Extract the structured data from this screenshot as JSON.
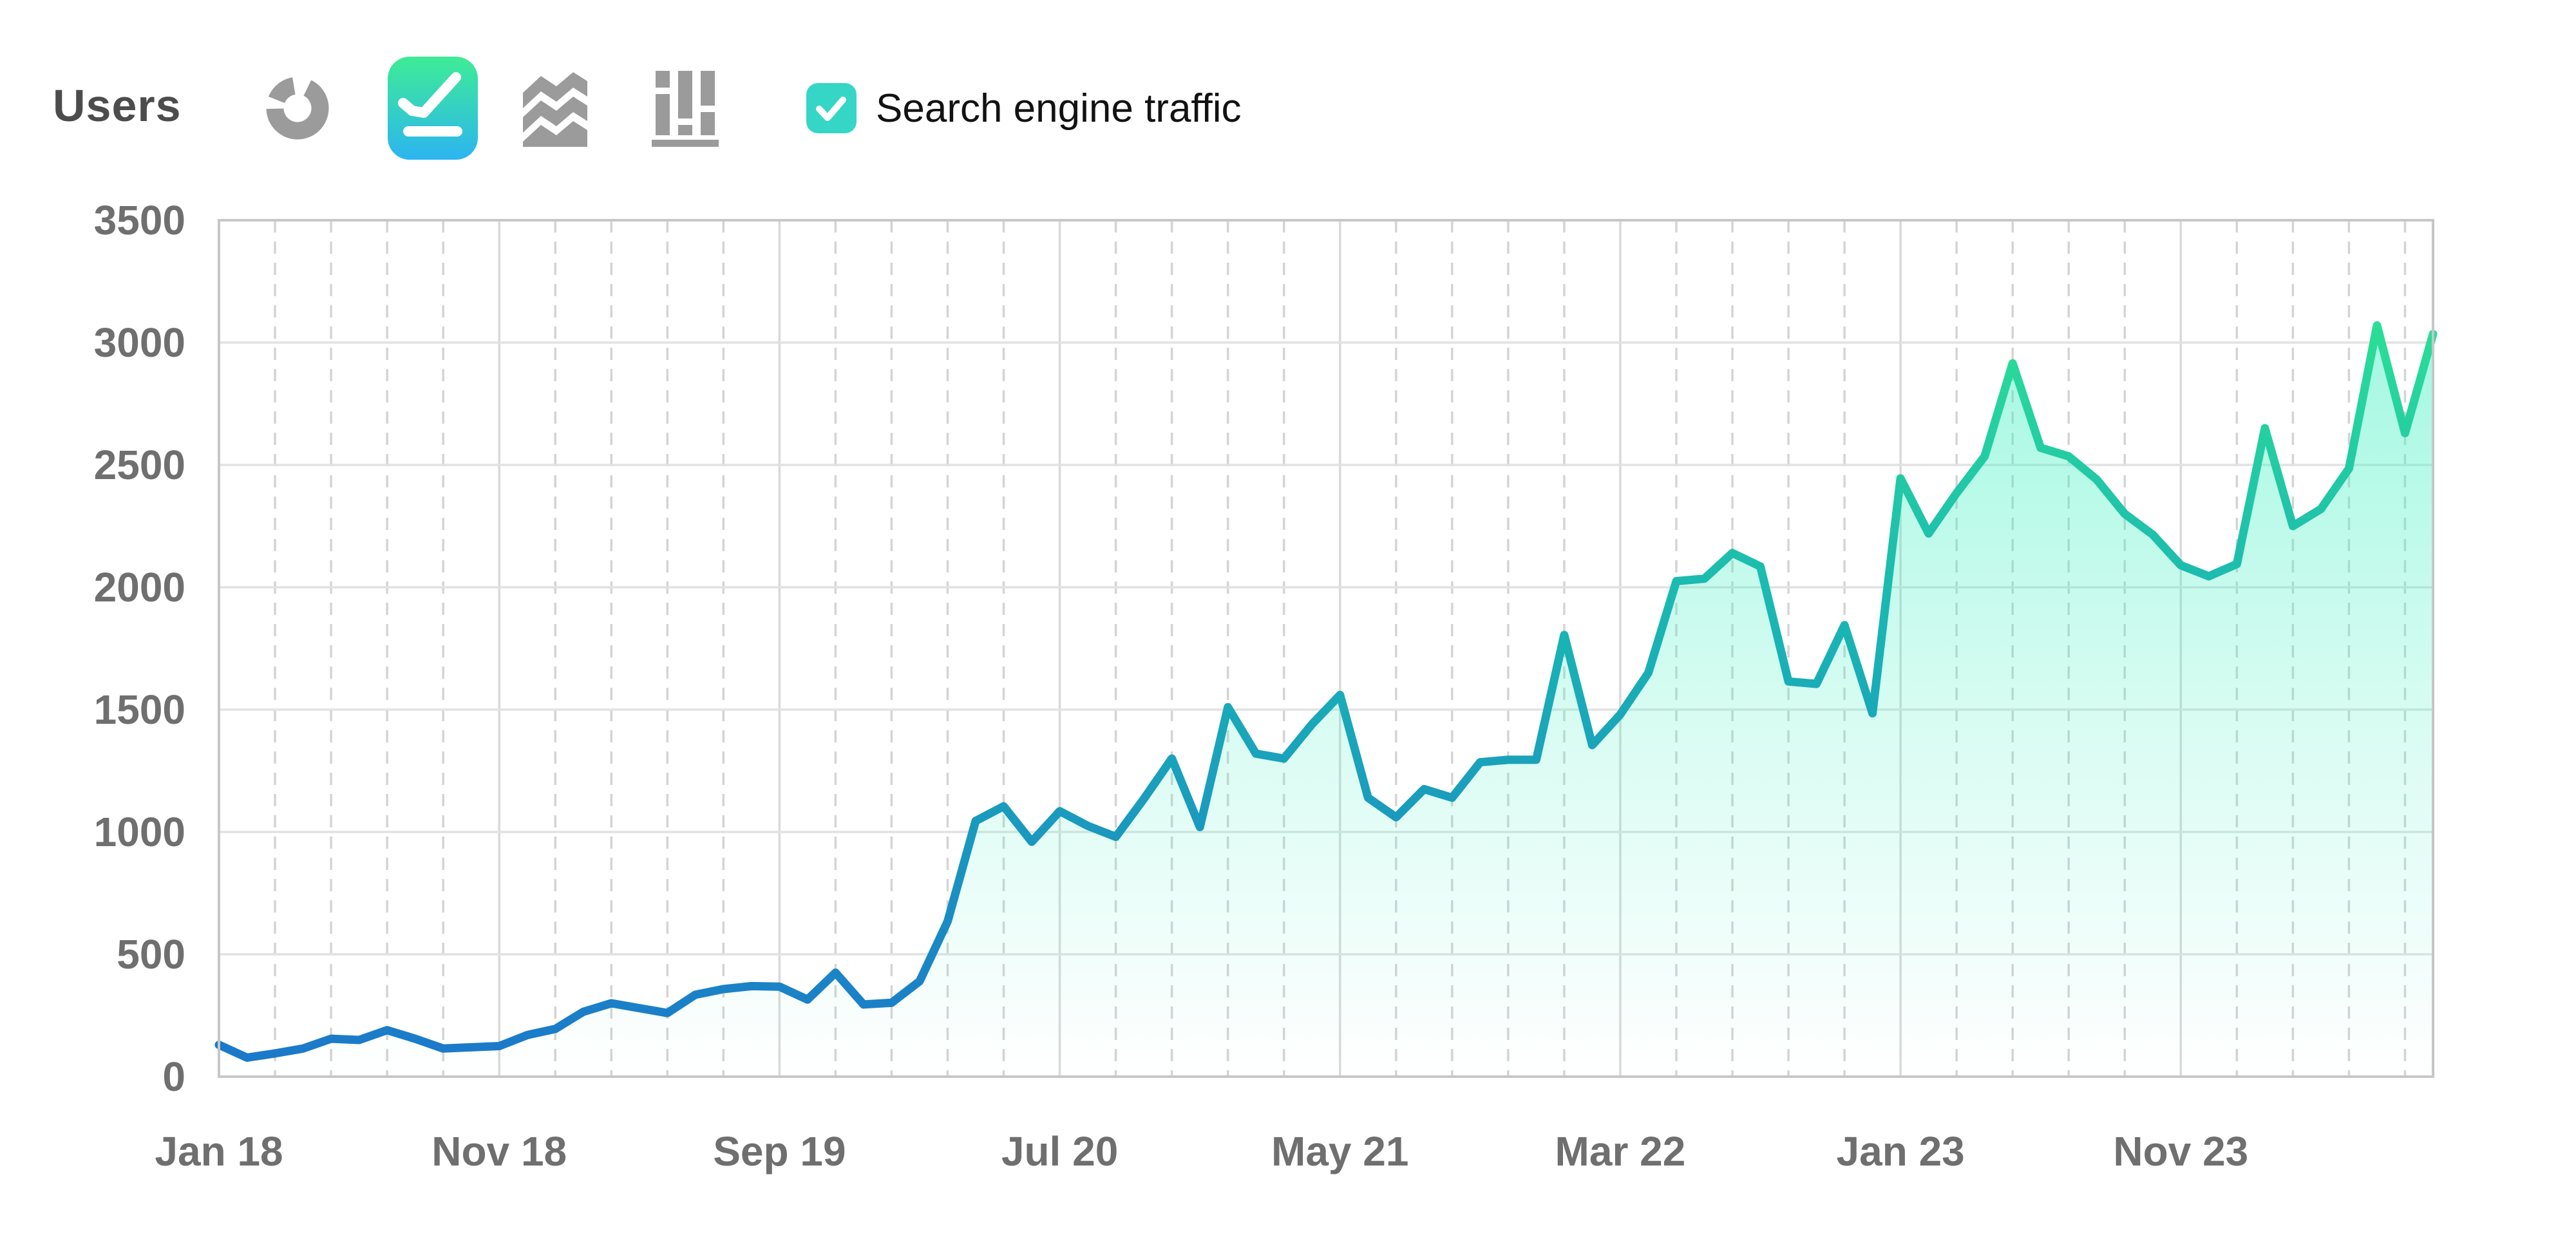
{
  "header": {
    "title": "Users",
    "chart_type_buttons": [
      {
        "label": "donut chart",
        "selected": false
      },
      {
        "label": "line chart",
        "selected": true
      },
      {
        "label": "stacked area chart",
        "selected": false
      },
      {
        "label": "bar chart",
        "selected": false
      }
    ],
    "legend": {
      "label": "Search engine traffic",
      "checked": true
    }
  },
  "colors": {
    "title_text": "#4c4c4c",
    "axis_label_text": "#6f6f6f",
    "legend_text": "#121212",
    "icon_gray": "#9b9b9b",
    "selected_button_gradient_top": "#3eec95",
    "selected_button_gradient_bottom": "#2cb5f0",
    "legend_checkbox": "#35d6c6",
    "line_gradient_bottom": "#1b76cb",
    "line_gradient_mid": "#19b4b4",
    "line_gradient_top": "#31ec8c",
    "area_fill_top": "rgba(62,240,193,0.55)",
    "area_fill_mid": "rgba(62,240,193,0.22)",
    "area_fill_bottom": "rgba(62,240,193,0)",
    "grid_h": "#e2e2e2",
    "grid_v_major": "#d9d9d9",
    "grid_v_minor": "#d4d4d4",
    "plot_border": "#c7c7c7"
  },
  "chart_data": {
    "type": "area",
    "title": "Users",
    "ylabel": "",
    "xlabel": "",
    "ylim": [
      0,
      3500
    ],
    "y_ticks": [
      0,
      500,
      1000,
      1500,
      2000,
      2500,
      3000,
      3500
    ],
    "x_start_month": "Jan 2018",
    "x_end_month": "Aug 2024",
    "months_per_point": 1,
    "x_tick_labels": [
      "Jan 18",
      "Nov 18",
      "Sep 19",
      "Jul 20",
      "May 21",
      "Mar 22",
      "Jan 23",
      "Nov 23"
    ],
    "x_tick_point_indexes": [
      0,
      10,
      20,
      30,
      40,
      50,
      60,
      70
    ],
    "grid": {
      "horizontal": "solid every 500",
      "vertical_major": "solid every 10 months",
      "vertical_minor": "dashed every 2 months"
    },
    "legend_position": "top",
    "series": [
      {
        "name": "Search engine traffic",
        "values": [
          130,
          78,
          95,
          115,
          155,
          150,
          190,
          155,
          115,
          120,
          125,
          170,
          195,
          265,
          300,
          280,
          260,
          335,
          358,
          370,
          368,
          315,
          425,
          295,
          302,
          390,
          635,
          1045,
          1105,
          960,
          1085,
          1025,
          980,
          1135,
          1300,
          1020,
          1510,
          1320,
          1300,
          1440,
          1560,
          1140,
          1060,
          1175,
          1140,
          1285,
          1295,
          1295,
          1805,
          1355,
          1480,
          1650,
          2025,
          2035,
          2140,
          2085,
          1615,
          1605,
          1845,
          1485,
          2445,
          2220,
          2385,
          2535,
          2915,
          2570,
          2535,
          2440,
          2300,
          2215,
          2090,
          2045,
          2095,
          2650,
          2250,
          2320,
          2485,
          3070,
          2630,
          3035
        ]
      }
    ]
  }
}
